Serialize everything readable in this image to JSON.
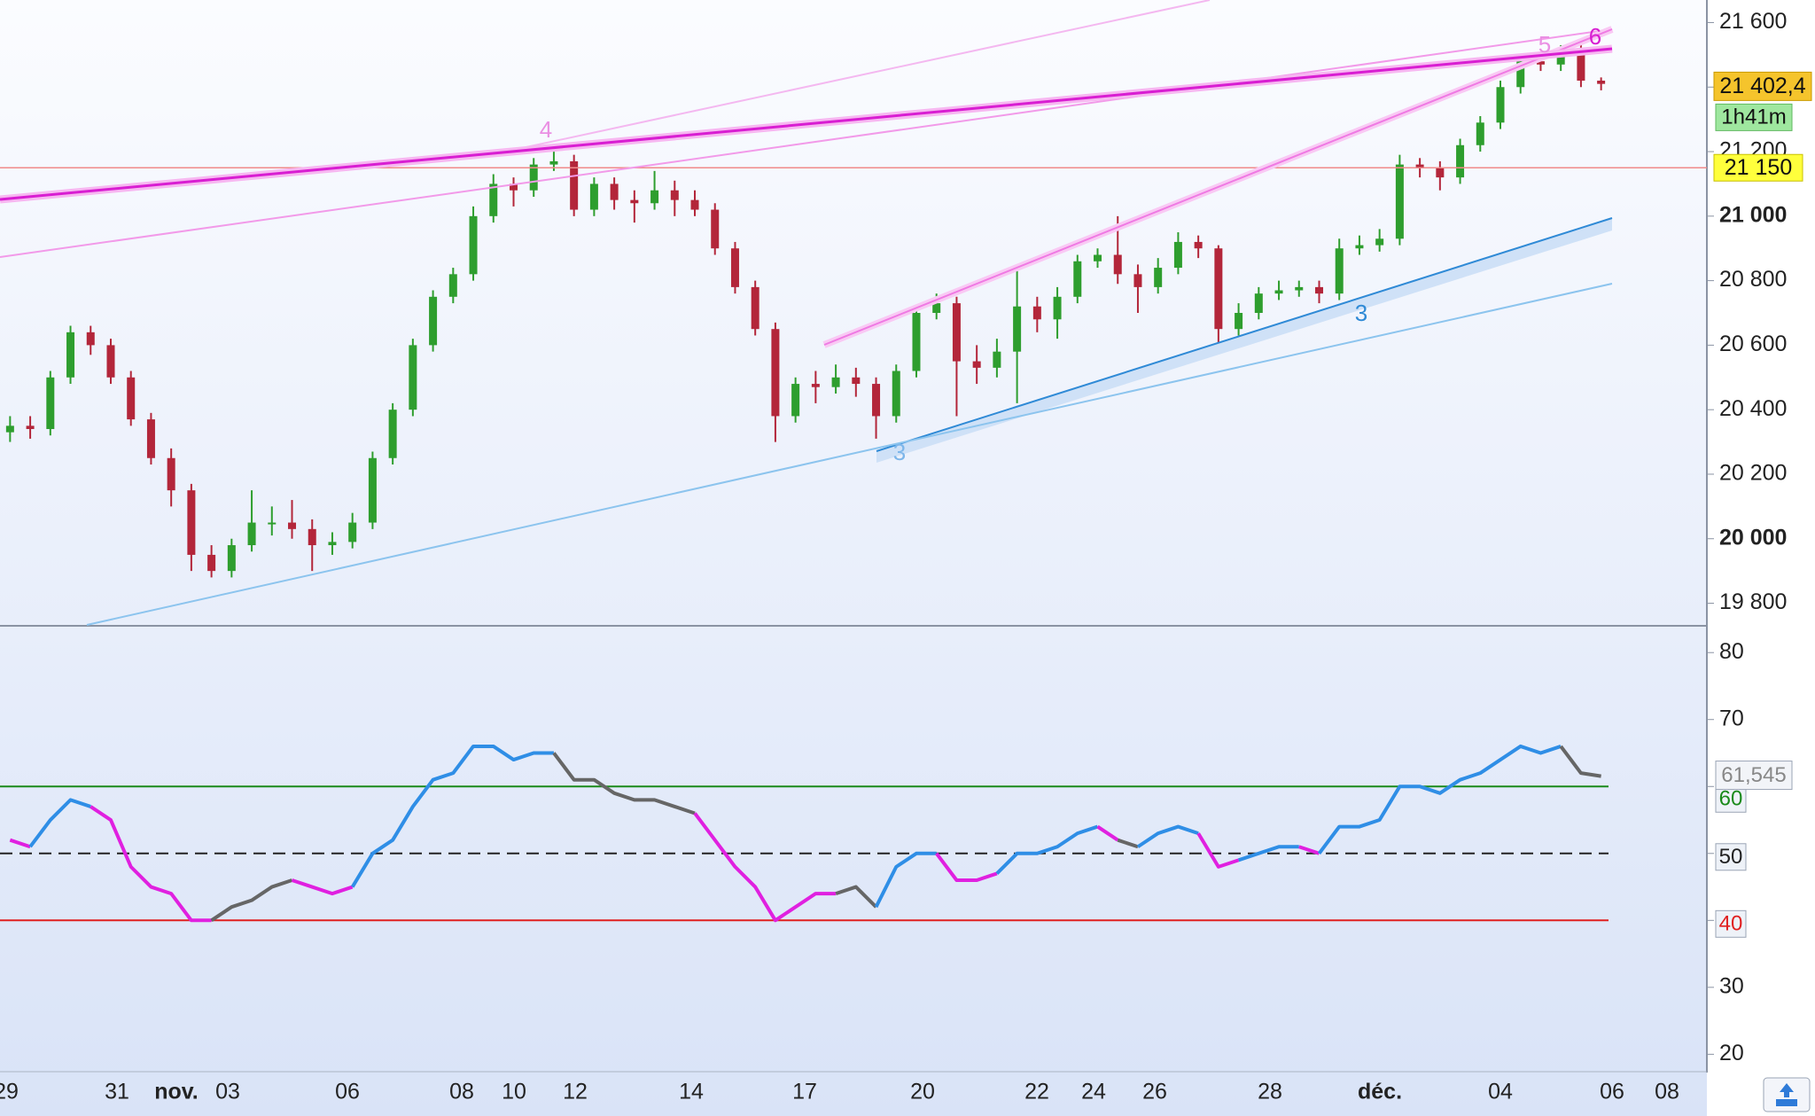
{
  "chart_data": [
    {
      "type": "candlestick",
      "ohlc": [
        [
          20330,
          20380,
          20300,
          20350
        ],
        [
          20350,
          20380,
          20310,
          20340
        ],
        [
          20340,
          20520,
          20320,
          20500
        ],
        [
          20500,
          20660,
          20480,
          20640
        ],
        [
          20640,
          20660,
          20570,
          20600
        ],
        [
          20600,
          20620,
          20480,
          20500
        ],
        [
          20500,
          20520,
          20350,
          20370
        ],
        [
          20370,
          20390,
          20230,
          20250
        ],
        [
          20250,
          20280,
          20100,
          20150
        ],
        [
          20150,
          20170,
          19900,
          19950
        ],
        [
          19950,
          19980,
          19880,
          19900
        ],
        [
          19900,
          20000,
          19880,
          19980
        ],
        [
          19980,
          20150,
          19960,
          20050
        ],
        [
          20050,
          20100,
          20010,
          20050
        ],
        [
          20050,
          20120,
          20000,
          20030
        ],
        [
          20030,
          20060,
          19900,
          19980
        ],
        [
          19980,
          20020,
          19950,
          19990
        ],
        [
          19990,
          20080,
          19970,
          20050
        ],
        [
          20050,
          20270,
          20030,
          20250
        ],
        [
          20250,
          20420,
          20230,
          20400
        ],
        [
          20400,
          20620,
          20380,
          20600
        ],
        [
          20600,
          20770,
          20580,
          20750
        ],
        [
          20750,
          20840,
          20730,
          20820
        ],
        [
          20820,
          21030,
          20800,
          21000
        ],
        [
          21000,
          21130,
          20980,
          21100
        ],
        [
          21100,
          21120,
          21030,
          21080
        ],
        [
          21080,
          21180,
          21060,
          21160
        ],
        [
          21160,
          21200,
          21140,
          21170
        ],
        [
          21170,
          21190,
          21000,
          21020
        ],
        [
          21020,
          21120,
          21000,
          21100
        ],
        [
          21100,
          21120,
          21020,
          21050
        ],
        [
          21050,
          21080,
          20980,
          21040
        ],
        [
          21040,
          21140,
          21020,
          21080
        ],
        [
          21080,
          21110,
          21000,
          21050
        ],
        [
          21050,
          21080,
          21000,
          21020
        ],
        [
          21020,
          21040,
          20880,
          20900
        ],
        [
          20900,
          20920,
          20760,
          20780
        ],
        [
          20780,
          20800,
          20630,
          20650
        ],
        [
          20650,
          20670,
          20300,
          20380
        ],
        [
          20380,
          20500,
          20360,
          20480
        ],
        [
          20480,
          20520,
          20420,
          20470
        ],
        [
          20470,
          20540,
          20450,
          20500
        ],
        [
          20500,
          20530,
          20440,
          20480
        ],
        [
          20480,
          20500,
          20310,
          20380
        ],
        [
          20380,
          20540,
          20360,
          20520
        ],
        [
          20520,
          20720,
          20500,
          20700
        ],
        [
          20700,
          20760,
          20680,
          20730
        ],
        [
          20730,
          20750,
          20380,
          20550
        ],
        [
          20550,
          20600,
          20480,
          20530
        ],
        [
          20530,
          20620,
          20500,
          20580
        ],
        [
          20580,
          20830,
          20420,
          20720
        ],
        [
          20720,
          20750,
          20640,
          20680
        ],
        [
          20680,
          20780,
          20620,
          20750
        ],
        [
          20750,
          20880,
          20730,
          20860
        ],
        [
          20860,
          20900,
          20840,
          20880
        ],
        [
          20880,
          21000,
          20790,
          20820
        ],
        [
          20820,
          20850,
          20700,
          20780
        ],
        [
          20780,
          20870,
          20760,
          20840
        ],
        [
          20840,
          20950,
          20820,
          20920
        ],
        [
          20920,
          20940,
          20870,
          20900
        ],
        [
          20900,
          20910,
          20600,
          20650
        ],
        [
          20650,
          20730,
          20630,
          20700
        ],
        [
          20700,
          20780,
          20680,
          20760
        ],
        [
          20760,
          20800,
          20740,
          20770
        ],
        [
          20770,
          20800,
          20750,
          20780
        ],
        [
          20780,
          20800,
          20730,
          20760
        ],
        [
          20760,
          20930,
          20740,
          20900
        ],
        [
          20900,
          20940,
          20880,
          20910
        ],
        [
          20910,
          20960,
          20890,
          20930
        ],
        [
          20930,
          21190,
          20910,
          21160
        ],
        [
          21160,
          21180,
          21120,
          21150
        ],
        [
          21150,
          21170,
          21080,
          21120
        ],
        [
          21120,
          21240,
          21100,
          21220
        ],
        [
          21220,
          21310,
          21200,
          21290
        ],
        [
          21290,
          21420,
          21270,
          21400
        ],
        [
          21400,
          21500,
          21380,
          21480
        ],
        [
          21480,
          21500,
          21450,
          21470
        ],
        [
          21470,
          21530,
          21450,
          21510
        ],
        [
          21510,
          21540,
          21400,
          21420
        ],
        [
          21420,
          21430,
          21390,
          21410
        ]
      ],
      "up_color": "#2e9e2e",
      "down_color": "#b3263a",
      "ylim": [
        19730,
        21670
      ],
      "yticks": [
        {
          "value": 19800,
          "label": "19 800"
        },
        {
          "value": 20000,
          "label": "20 000"
        },
        {
          "value": 20200,
          "label": "20 200"
        },
        {
          "value": 20400,
          "label": "20 400"
        },
        {
          "value": 20600,
          "label": "20 600"
        },
        {
          "value": 20800,
          "label": "20 800"
        },
        {
          "value": 21000,
          "label": "21 000"
        },
        {
          "value": 21200,
          "label": "21 200"
        },
        {
          "value": 21400,
          "label": "21 400"
        },
        {
          "value": 21600,
          "label": "21 600"
        }
      ],
      "last_price": {
        "value": 21402.4,
        "label": "21 402,4"
      },
      "countdown": "1h41m",
      "level": {
        "value": 21150,
        "label": "21 150"
      },
      "annotations": [
        "4",
        "5",
        "6",
        "3",
        "3"
      ],
      "xtick_labels": [
        "29",
        "31",
        "nov.",
        "03",
        "06",
        "08",
        "10",
        "12",
        "14",
        "17",
        "20",
        "22",
        "24",
        "26",
        "28",
        "déc.",
        "04",
        "06",
        "08"
      ]
    },
    {
      "type": "line",
      "values": [
        52,
        51,
        55,
        58,
        57,
        55,
        48,
        45,
        44,
        40,
        40,
        42,
        43,
        45,
        46,
        45,
        44,
        45,
        50,
        52,
        57,
        61,
        62,
        66,
        66,
        64,
        65,
        65,
        61,
        61,
        59,
        58,
        58,
        57,
        56,
        52,
        48,
        45,
        40,
        42,
        44,
        44,
        45,
        42,
        48,
        50,
        50,
        46,
        46,
        47,
        50,
        50,
        51,
        53,
        54,
        52,
        51,
        53,
        54,
        53,
        48,
        49,
        50,
        51,
        51,
        50,
        54,
        54,
        55,
        60,
        60,
        59,
        61,
        62,
        64,
        66,
        65,
        66,
        62,
        61.545
      ],
      "colors": [
        "#e020e0",
        "#e020e0",
        "#2f8ee6",
        "#2f8ee6",
        "#2f8ee6",
        "#e020e0",
        "#e020e0",
        "#e020e0",
        "#e020e0",
        "#e020e0",
        "#e020e0",
        "#666666",
        "#666666",
        "#666666",
        "#666666",
        "#e020e0",
        "#e020e0",
        "#e020e0",
        "#2f8ee6",
        "#2f8ee6",
        "#2f8ee6",
        "#2f8ee6",
        "#2f8ee6",
        "#2f8ee6",
        "#2f8ee6",
        "#2f8ee6",
        "#2f8ee6",
        "#2f8ee6",
        "#666666",
        "#666666",
        "#666666",
        "#666666",
        "#666666",
        "#666666",
        "#666666",
        "#e020e0",
        "#e020e0",
        "#e020e0",
        "#e020e0",
        "#e020e0",
        "#e020e0",
        "#e020e0",
        "#666666",
        "#666666",
        "#2f8ee6",
        "#2f8ee6",
        "#2f8ee6",
        "#e020e0",
        "#e020e0",
        "#e020e0",
        "#2f8ee6",
        "#2f8ee6",
        "#2f8ee6",
        "#2f8ee6",
        "#2f8ee6",
        "#e020e0",
        "#666666",
        "#2f8ee6",
        "#2f8ee6",
        "#2f8ee6",
        "#e020e0",
        "#e020e0",
        "#2f8ee6",
        "#2f8ee6",
        "#2f8ee6",
        "#e020e0",
        "#2f8ee6",
        "#2f8ee6",
        "#2f8ee6",
        "#2f8ee6",
        "#2f8ee6",
        "#2f8ee6",
        "#2f8ee6",
        "#2f8ee6",
        "#2f8ee6",
        "#2f8ee6",
        "#2f8ee6",
        "#2f8ee6",
        "#666666",
        "#666666"
      ],
      "last_label": "61,545",
      "levels": [
        60,
        50,
        40
      ],
      "level_colors": [
        "#1a8a1a",
        "#222222",
        "#e02020"
      ],
      "level_styles": [
        "solid",
        "dashed",
        "solid"
      ],
      "ylim": [
        17.4,
        84
      ],
      "yticks": [
        20,
        30,
        40,
        50,
        60,
        70,
        80
      ]
    }
  ]
}
